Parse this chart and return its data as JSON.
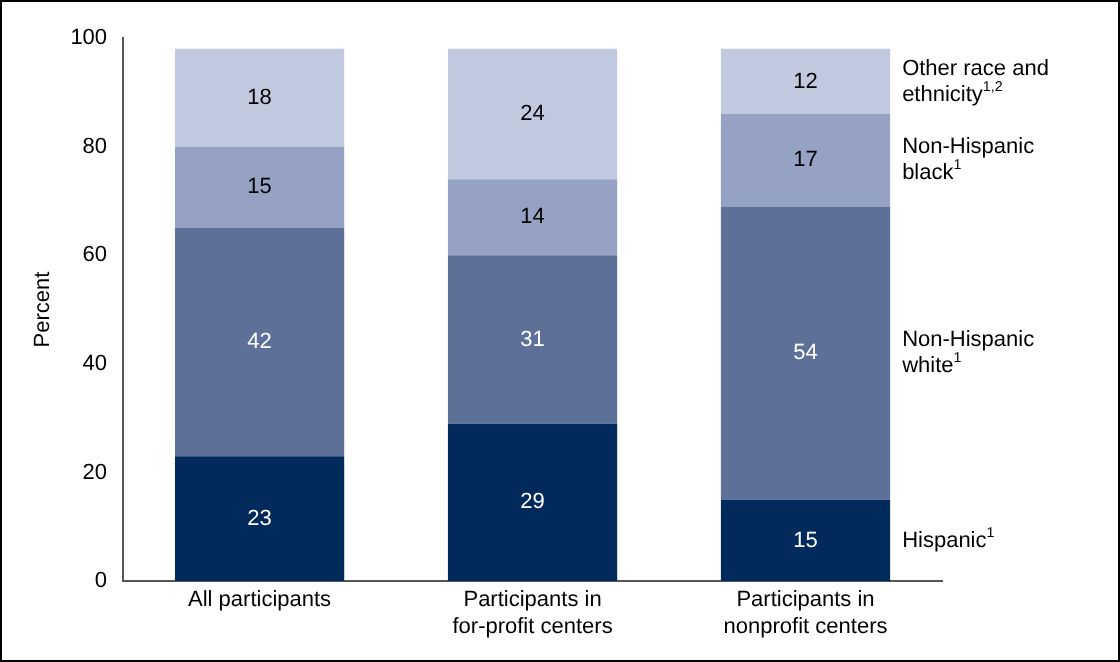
{
  "chart_data": {
    "type": "bar",
    "stacked": true,
    "ylabel": "Percent",
    "categories": [
      "All participants",
      "Participants in for-profit centers",
      "Participants in nonprofit centers"
    ],
    "series": [
      {
        "name": "Hispanic$^{1}$",
        "color": "#002a5c",
        "values": [
          23,
          29,
          15
        ]
      },
      {
        "name": "Non-Hispanic white$^{1}$",
        "color": "#5d7198",
        "values": [
          42,
          31,
          54
        ]
      },
      {
        "name": "Non-Hispanic black$^{1}$",
        "color": "#95a2c3",
        "values": [
          15,
          14,
          17
        ]
      },
      {
        "name": "Other race and ethnicity$^{1,2}$",
        "color": "#c1c9de",
        "values": [
          18,
          24,
          12
        ]
      }
    ],
    "ylim": [
      0,
      100
    ],
    "yticks": [
      0,
      20,
      40,
      60,
      80,
      100
    ],
    "grid": false,
    "legend": false,
    "data_labels": true
  }
}
